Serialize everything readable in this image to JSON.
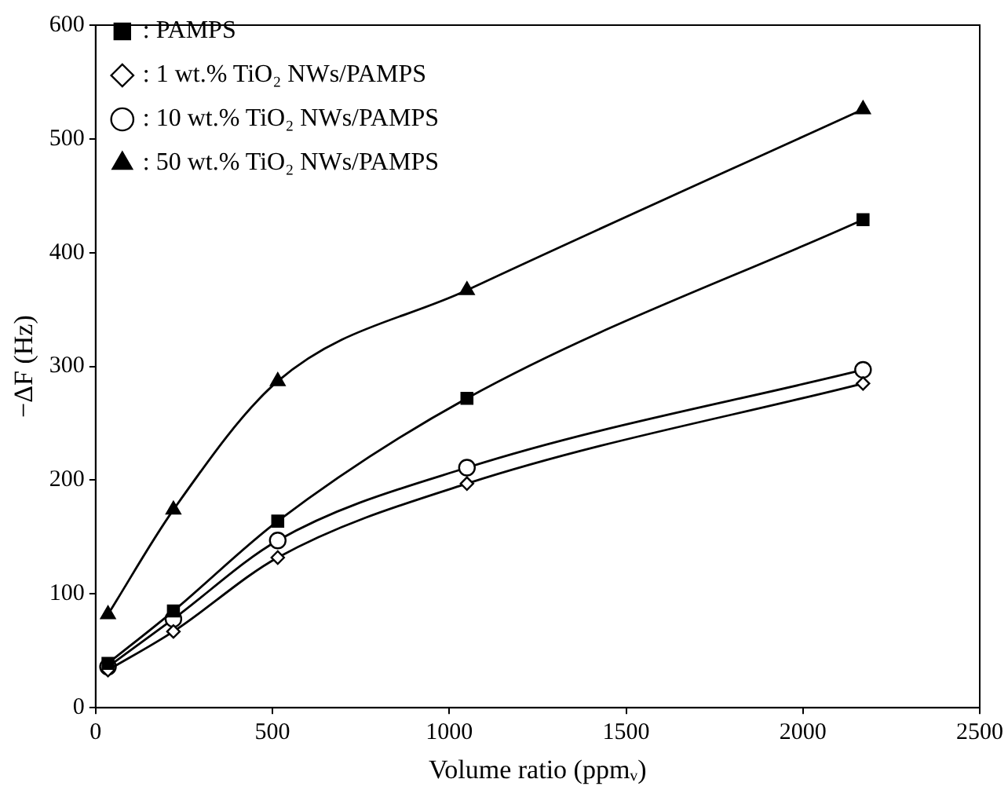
{
  "chart_data": {
    "type": "line",
    "xlabel": "Volume ratio (ppmᵥ)",
    "ylabel": "−ΔF (Hz)",
    "xlim": [
      0,
      2500
    ],
    "xticks": [
      0,
      500,
      1000,
      1500,
      2000,
      2500
    ],
    "ylim": [
      0,
      600
    ],
    "yticks": [
      0,
      100,
      200,
      300,
      400,
      500,
      600
    ],
    "grid": false,
    "legend": "top left",
    "line_style": "solid",
    "x": [
      35,
      220,
      515,
      1050,
      2170
    ],
    "series": [
      {
        "name": ": PAMPS",
        "color": "#000000",
        "marker": "square",
        "values": [
          39,
          85,
          164,
          272,
          429
        ]
      },
      {
        "name": ": 1 wt.% TiO₂ NWs/PAMPS",
        "color": "#000000",
        "marker": "diamond",
        "values": [
          33,
          67,
          132,
          197,
          285
        ]
      },
      {
        "name": ": 10 wt.% TiO₂ NWs/PAMPS",
        "color": "#000000",
        "marker": "circle",
        "values": [
          36,
          78,
          147,
          211,
          297
        ]
      },
      {
        "name": ": 50 wt.% TiO₂ NWs/PAMPS",
        "color": "#000000",
        "marker": "triangle",
        "values": [
          82,
          174,
          287,
          367,
          526
        ]
      }
    ]
  }
}
